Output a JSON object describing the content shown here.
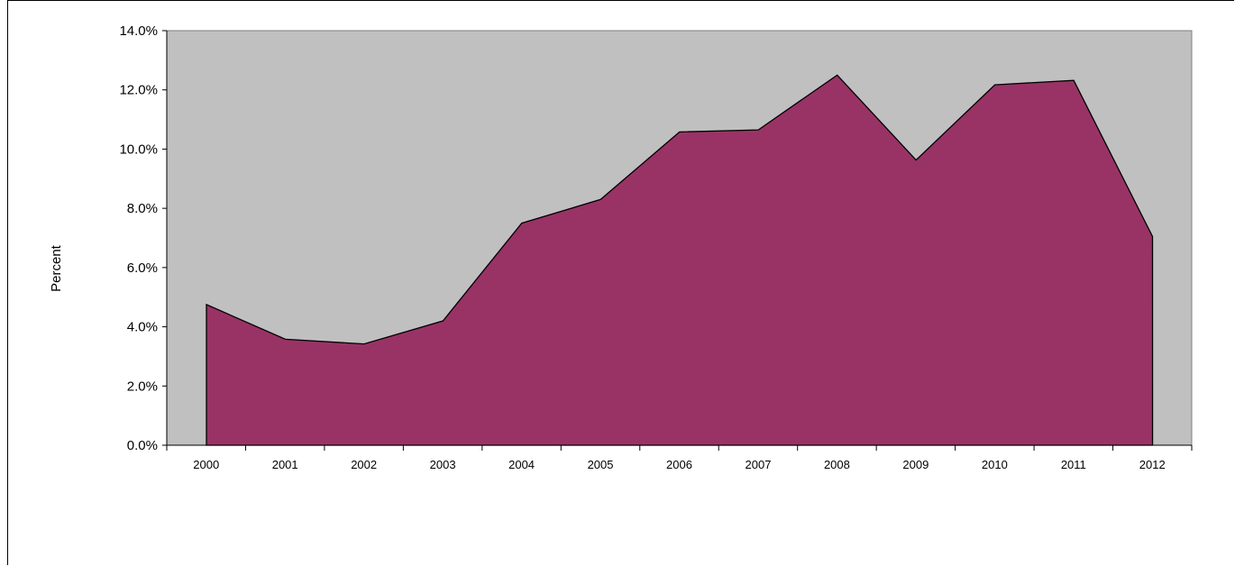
{
  "chart_data": {
    "type": "area",
    "title": "",
    "xlabel": "",
    "ylabel": "Percent",
    "categories": [
      "2000",
      "2001",
      "2002",
      "2003",
      "2004",
      "2005",
      "2006",
      "2007",
      "2008",
      "2009",
      "2010",
      "2011",
      "2012"
    ],
    "series": [
      {
        "values": [
          4.75,
          3.58,
          3.42,
          4.2,
          7.5,
          8.3,
          10.58,
          10.65,
          12.5,
          9.63,
          12.17,
          12.32,
          7.05
        ]
      }
    ],
    "ylim": [
      0,
      14
    ],
    "yticks": [
      "0.0%",
      "2.0%",
      "4.0%",
      "6.0%",
      "8.0%",
      "10.0%",
      "12.0%",
      "14.0%"
    ],
    "grid": false,
    "legend": "none",
    "colors": {
      "plot_background": "#c0c0c0",
      "area_fill": "#993366",
      "area_line": "#000000"
    }
  }
}
